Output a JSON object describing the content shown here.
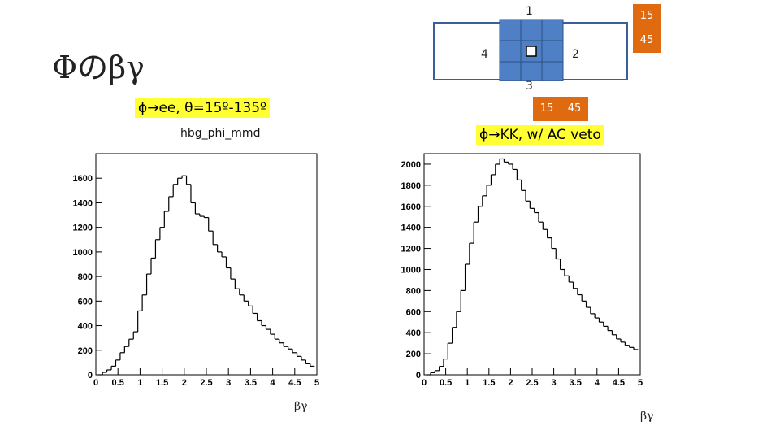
{
  "slide": {
    "title": "Φのβγ",
    "label_left": "ϕ→ee, θ=15º-135º",
    "label_right": "ϕ→KK, w/ AC veto",
    "hist_name": "hbg_phi_mmd"
  },
  "detector": {
    "labels": {
      "top": "1",
      "right": "2",
      "bottom": "3",
      "left": "4"
    },
    "badges_right": [
      "15",
      "45"
    ],
    "badges_bottom": [
      "15",
      "45"
    ]
  },
  "colors": {
    "cell": "#4f7fc4",
    "badge": "#e06a10",
    "highlight": "#ffff33"
  },
  "chart_data": [
    {
      "type": "histogram",
      "xlabel": "βγ",
      "xlim": [
        0,
        5
      ],
      "ylim": [
        0,
        1800
      ],
      "xticks": [
        "0",
        "0.5",
        "1",
        "1.5",
        "2",
        "2.5",
        "3",
        "3.5",
        "4",
        "4.5",
        "5"
      ],
      "yticks": [
        "0",
        "200",
        "400",
        "600",
        "800",
        "1000",
        "1200",
        "1400",
        "1600"
      ],
      "x": [
        0.1,
        0.2,
        0.3,
        0.4,
        0.5,
        0.6,
        0.7,
        0.8,
        0.9,
        1.0,
        1.1,
        1.2,
        1.3,
        1.4,
        1.5,
        1.6,
        1.7,
        1.8,
        1.9,
        2.0,
        2.1,
        2.2,
        2.3,
        2.4,
        2.5,
        2.6,
        2.7,
        2.8,
        2.9,
        3.0,
        3.1,
        3.2,
        3.3,
        3.4,
        3.5,
        3.6,
        3.7,
        3.8,
        3.9,
        4.0,
        4.1,
        4.2,
        4.3,
        4.4,
        4.5,
        4.6,
        4.7,
        4.8,
        4.9
      ],
      "values": [
        0,
        20,
        40,
        70,
        120,
        180,
        230,
        290,
        350,
        520,
        650,
        820,
        950,
        1100,
        1200,
        1330,
        1450,
        1550,
        1600,
        1620,
        1550,
        1400,
        1310,
        1290,
        1280,
        1170,
        1060,
        1000,
        960,
        870,
        780,
        700,
        650,
        600,
        560,
        500,
        440,
        400,
        370,
        330,
        290,
        260,
        230,
        210,
        180,
        150,
        120,
        90,
        70
      ]
    },
    {
      "type": "histogram",
      "xlabel": "βγ",
      "xlim": [
        0,
        5
      ],
      "ylim": [
        0,
        2100
      ],
      "xticks": [
        "0",
        "0.5",
        "1",
        "1.5",
        "2",
        "2.5",
        "3",
        "3.5",
        "4",
        "4.5",
        "5"
      ],
      "yticks": [
        "0",
        "200",
        "400",
        "600",
        "800",
        "1000",
        "1200",
        "1400",
        "1600",
        "1800",
        "2000"
      ],
      "x": [
        0.1,
        0.2,
        0.3,
        0.4,
        0.5,
        0.6,
        0.7,
        0.8,
        0.9,
        1.0,
        1.1,
        1.2,
        1.3,
        1.4,
        1.5,
        1.6,
        1.7,
        1.8,
        1.9,
        2.0,
        2.1,
        2.2,
        2.3,
        2.4,
        2.5,
        2.6,
        2.7,
        2.8,
        2.9,
        3.0,
        3.1,
        3.2,
        3.3,
        3.4,
        3.5,
        3.6,
        3.7,
        3.8,
        3.9,
        4.0,
        4.1,
        4.2,
        4.3,
        4.4,
        4.5,
        4.6,
        4.7,
        4.8,
        4.9
      ],
      "values": [
        0,
        20,
        40,
        80,
        150,
        300,
        450,
        600,
        800,
        1050,
        1250,
        1450,
        1600,
        1700,
        1800,
        1900,
        2000,
        2050,
        2020,
        2000,
        1950,
        1850,
        1750,
        1650,
        1580,
        1540,
        1450,
        1380,
        1300,
        1200,
        1100,
        1000,
        940,
        880,
        820,
        760,
        700,
        640,
        580,
        540,
        500,
        460,
        420,
        380,
        340,
        310,
        280,
        260,
        240
      ]
    }
  ]
}
